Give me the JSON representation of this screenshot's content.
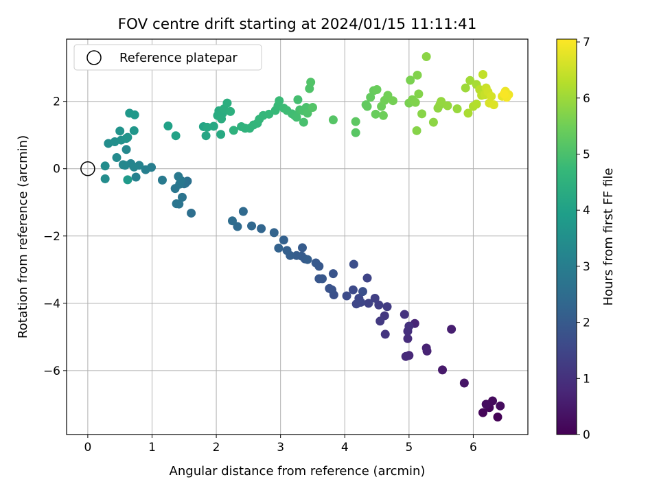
{
  "chart_data": {
    "type": "scatter",
    "title": "FOV centre drift starting at 2024/01/15 11:11:41",
    "xlabel": "Angular distance from reference (arcmin)",
    "ylabel": "Rotation from reference (arcmin)",
    "xlim": [
      -0.33,
      6.85
    ],
    "ylim": [
      -7.9,
      3.85
    ],
    "xticks": [
      0,
      1,
      2,
      3,
      4,
      5,
      6
    ],
    "yticks": [
      -6,
      -4,
      -2,
      0,
      2
    ],
    "xtick_labels": [
      "0",
      "1",
      "2",
      "3",
      "4",
      "5",
      "6"
    ],
    "ytick_labels": [
      "−6",
      "−4",
      "−2",
      "0",
      "2"
    ],
    "grid": true,
    "legend": {
      "position": "top-left",
      "entries": [
        {
          "label": "Reference platepar",
          "marker": "open-circle",
          "x": 0,
          "y": 0
        }
      ]
    },
    "colorbar": {
      "label": "Hours from first FF file",
      "min": 0,
      "max": 7.05,
      "ticks": [
        0,
        1,
        2,
        3,
        4,
        5,
        6,
        7
      ],
      "tick_labels": [
        "0",
        "1",
        "2",
        "3",
        "4",
        "5",
        "6",
        "7"
      ],
      "colormap": "viridis"
    },
    "points": [
      [
        6.38,
        -7.38,
        0.05
      ],
      [
        6.15,
        -7.25,
        0.1
      ],
      [
        6.25,
        -7.1,
        0.15
      ],
      [
        6.3,
        -6.9,
        0.2
      ],
      [
        6.42,
        -7.05,
        0.22
      ],
      [
        6.2,
        -7.0,
        0.25
      ],
      [
        5.86,
        -6.37,
        0.4
      ],
      [
        5.52,
        -5.98,
        0.5
      ],
      [
        5.66,
        -4.77,
        0.6
      ],
      [
        5.27,
        -5.33,
        0.65
      ],
      [
        5.28,
        -5.42,
        0.7
      ],
      [
        5.09,
        -4.6,
        0.75
      ],
      [
        5.0,
        -5.55,
        0.8
      ],
      [
        4.95,
        -5.58,
        0.85
      ],
      [
        4.98,
        -5.05,
        0.9
      ],
      [
        4.98,
        -4.83,
        0.95
      ],
      [
        5.0,
        -4.68,
        1.0
      ],
      [
        4.93,
        -4.33,
        1.05
      ],
      [
        4.63,
        -4.92,
        1.1
      ],
      [
        4.62,
        -4.37,
        1.15
      ],
      [
        4.55,
        -4.53,
        1.2
      ],
      [
        4.66,
        -4.1,
        1.25
      ],
      [
        4.53,
        -4.05,
        1.3
      ],
      [
        4.47,
        -3.85,
        1.35
      ],
      [
        4.37,
        -4.0,
        1.4
      ],
      [
        4.35,
        -3.25,
        1.45
      ],
      [
        4.25,
        -3.97,
        1.5
      ],
      [
        4.18,
        -4.02,
        1.52
      ],
      [
        4.22,
        -3.85,
        1.55
      ],
      [
        4.13,
        -3.6,
        1.6
      ],
      [
        4.03,
        -3.78,
        1.65
      ],
      [
        4.14,
        -2.84,
        1.7
      ],
      [
        4.28,
        -3.65,
        1.72
      ],
      [
        3.83,
        -3.75,
        1.75
      ],
      [
        3.8,
        -3.6,
        1.8
      ],
      [
        3.76,
        -3.56,
        1.82
      ],
      [
        3.82,
        -3.12,
        1.85
      ],
      [
        3.6,
        -3.27,
        1.9
      ],
      [
        3.65,
        -3.27,
        1.92
      ],
      [
        3.6,
        -2.9,
        1.95
      ],
      [
        3.55,
        -2.8,
        1.97
      ],
      [
        3.38,
        -2.68,
        2.0
      ],
      [
        3.34,
        -2.35,
        2.02
      ],
      [
        3.33,
        -2.6,
        2.05
      ],
      [
        3.25,
        -2.58,
        2.07
      ],
      [
        3.42,
        -2.7,
        2.1
      ],
      [
        3.15,
        -2.58,
        2.12
      ],
      [
        3.1,
        -2.43,
        2.15
      ],
      [
        3.05,
        -2.12,
        2.17
      ],
      [
        2.97,
        -2.36,
        2.2
      ],
      [
        2.9,
        -1.9,
        2.25
      ],
      [
        2.7,
        -1.78,
        2.3
      ],
      [
        2.55,
        -1.7,
        2.35
      ],
      [
        2.42,
        -1.27,
        2.4
      ],
      [
        2.33,
        -1.72,
        2.45
      ],
      [
        2.25,
        -1.55,
        2.5
      ],
      [
        1.61,
        -1.32,
        2.55
      ],
      [
        1.52,
        -0.43,
        2.6
      ],
      [
        1.55,
        -0.37,
        2.62
      ],
      [
        1.5,
        -0.45,
        2.65
      ],
      [
        1.47,
        -0.85,
        2.7
      ],
      [
        1.42,
        -1.05,
        2.72
      ],
      [
        1.38,
        -1.04,
        2.75
      ],
      [
        1.36,
        -0.59,
        2.77
      ],
      [
        1.43,
        -0.46,
        2.8
      ],
      [
        1.45,
        -0.35,
        2.82
      ],
      [
        1.41,
        -0.23,
        2.85
      ],
      [
        1.16,
        -0.34,
        2.9
      ],
      [
        0.99,
        0.04,
        3.0
      ],
      [
        0.9,
        -0.03,
        3.05
      ],
      [
        0.75,
        -0.25,
        3.1
      ],
      [
        0.8,
        0.1,
        3.15
      ],
      [
        0.67,
        0.15,
        3.2
      ],
      [
        0.72,
        0.05,
        3.22
      ],
      [
        0.58,
        0.1,
        3.25
      ],
      [
        0.55,
        0.12,
        3.27
      ],
      [
        0.6,
        0.57,
        3.3
      ],
      [
        0.45,
        0.33,
        3.35
      ],
      [
        0.27,
        -0.3,
        3.4
      ],
      [
        0.27,
        0.08,
        3.42
      ],
      [
        0.32,
        0.75,
        3.45
      ],
      [
        0.42,
        0.8,
        3.5
      ],
      [
        0.52,
        0.85,
        3.55
      ],
      [
        0.5,
        1.12,
        3.6
      ],
      [
        0.6,
        0.9,
        3.62
      ],
      [
        0.62,
        0.93,
        3.65
      ],
      [
        0.72,
        1.13,
        3.7
      ],
      [
        0.65,
        1.65,
        3.75
      ],
      [
        0.73,
        1.6,
        3.78
      ],
      [
        0.62,
        -0.33,
        3.8
      ],
      [
        1.25,
        1.27,
        4.0
      ],
      [
        1.37,
        0.98,
        4.05
      ],
      [
        1.8,
        1.25,
        4.1
      ],
      [
        1.84,
        0.98,
        4.15
      ],
      [
        1.96,
        1.26,
        4.2
      ],
      [
        1.86,
        1.23,
        4.22
      ],
      [
        2.07,
        1.02,
        4.25
      ],
      [
        2.04,
        1.72,
        4.3
      ],
      [
        2.02,
        1.58,
        4.32
      ],
      [
        2.1,
        1.65,
        4.35
      ],
      [
        2.08,
        1.48,
        4.37
      ],
      [
        2.12,
        1.78,
        4.4
      ],
      [
        2.17,
        1.95,
        4.42
      ],
      [
        2.22,
        1.7,
        4.45
      ],
      [
        2.27,
        1.14,
        4.5
      ],
      [
        2.39,
        1.25,
        4.52
      ],
      [
        2.45,
        1.2,
        4.55
      ],
      [
        2.52,
        1.2,
        4.57
      ],
      [
        2.58,
        1.3,
        4.6
      ],
      [
        2.64,
        1.35,
        4.62
      ],
      [
        2.67,
        1.47,
        4.65
      ],
      [
        2.73,
        1.58,
        4.67
      ],
      [
        2.82,
        1.62,
        4.7
      ],
      [
        2.92,
        1.73,
        4.72
      ],
      [
        2.96,
        1.87,
        4.75
      ],
      [
        2.98,
        2.02,
        4.77
      ],
      [
        3.05,
        1.8,
        4.8
      ],
      [
        3.1,
        1.73,
        4.82
      ],
      [
        3.18,
        1.63,
        4.85
      ],
      [
        3.22,
        1.58,
        4.87
      ],
      [
        3.25,
        1.53,
        4.9
      ],
      [
        3.27,
        2.05,
        4.92
      ],
      [
        3.3,
        1.75,
        4.95
      ],
      [
        3.36,
        1.38,
        4.97
      ],
      [
        3.35,
        1.72,
        5.0
      ],
      [
        3.4,
        1.82,
        5.02
      ],
      [
        3.42,
        1.65,
        5.05
      ],
      [
        3.45,
        2.38,
        5.07
      ],
      [
        3.47,
        2.57,
        5.1
      ],
      [
        3.5,
        1.82,
        5.12
      ],
      [
        3.82,
        1.45,
        5.15
      ],
      [
        4.17,
        1.07,
        5.2
      ],
      [
        4.17,
        1.4,
        5.25
      ],
      [
        4.33,
        1.9,
        5.3
      ],
      [
        4.35,
        1.85,
        5.32
      ],
      [
        4.4,
        2.12,
        5.35
      ],
      [
        4.45,
        2.32,
        5.37
      ],
      [
        4.48,
        1.62,
        5.4
      ],
      [
        4.5,
        2.35,
        5.42
      ],
      [
        4.57,
        1.85,
        5.45
      ],
      [
        4.6,
        1.58,
        5.47
      ],
      [
        4.62,
        2.03,
        5.5
      ],
      [
        4.67,
        2.18,
        5.52
      ],
      [
        4.75,
        2.02,
        5.55
      ],
      [
        5.0,
        1.95,
        5.6
      ],
      [
        5.02,
        2.63,
        5.62
      ],
      [
        5.05,
        2.05,
        5.65
      ],
      [
        5.1,
        1.97,
        5.67
      ],
      [
        5.13,
        2.78,
        5.7
      ],
      [
        5.15,
        2.22,
        5.72
      ],
      [
        5.12,
        1.13,
        5.75
      ],
      [
        5.2,
        1.63,
        5.77
      ],
      [
        5.27,
        3.33,
        5.8
      ],
      [
        5.38,
        1.38,
        5.82
      ],
      [
        5.45,
        1.8,
        5.85
      ],
      [
        5.48,
        1.9,
        5.87
      ],
      [
        5.5,
        2.0,
        5.9
      ],
      [
        5.6,
        1.87,
        5.92
      ],
      [
        5.75,
        1.78,
        5.95
      ],
      [
        5.88,
        2.4,
        6.0
      ],
      [
        5.95,
        2.62,
        6.05
      ],
      [
        6.05,
        2.5,
        6.1
      ],
      [
        5.92,
        1.65,
        6.15
      ],
      [
        6.0,
        1.85,
        6.2
      ],
      [
        6.05,
        1.92,
        6.25
      ],
      [
        6.1,
        2.35,
        6.3
      ],
      [
        6.13,
        2.18,
        6.35
      ],
      [
        6.15,
        2.8,
        6.4
      ],
      [
        6.18,
        2.2,
        6.45
      ],
      [
        6.2,
        2.4,
        6.5
      ],
      [
        6.23,
        2.28,
        6.55
      ],
      [
        6.28,
        2.15,
        6.6
      ],
      [
        6.25,
        1.95,
        6.65
      ],
      [
        6.32,
        1.9,
        6.7
      ],
      [
        6.45,
        2.15,
        6.8
      ],
      [
        6.5,
        2.3,
        6.85
      ],
      [
        6.55,
        2.2,
        6.9
      ],
      [
        6.52,
        2.12,
        6.95
      ],
      [
        6.48,
        2.22,
        7.0
      ]
    ]
  }
}
